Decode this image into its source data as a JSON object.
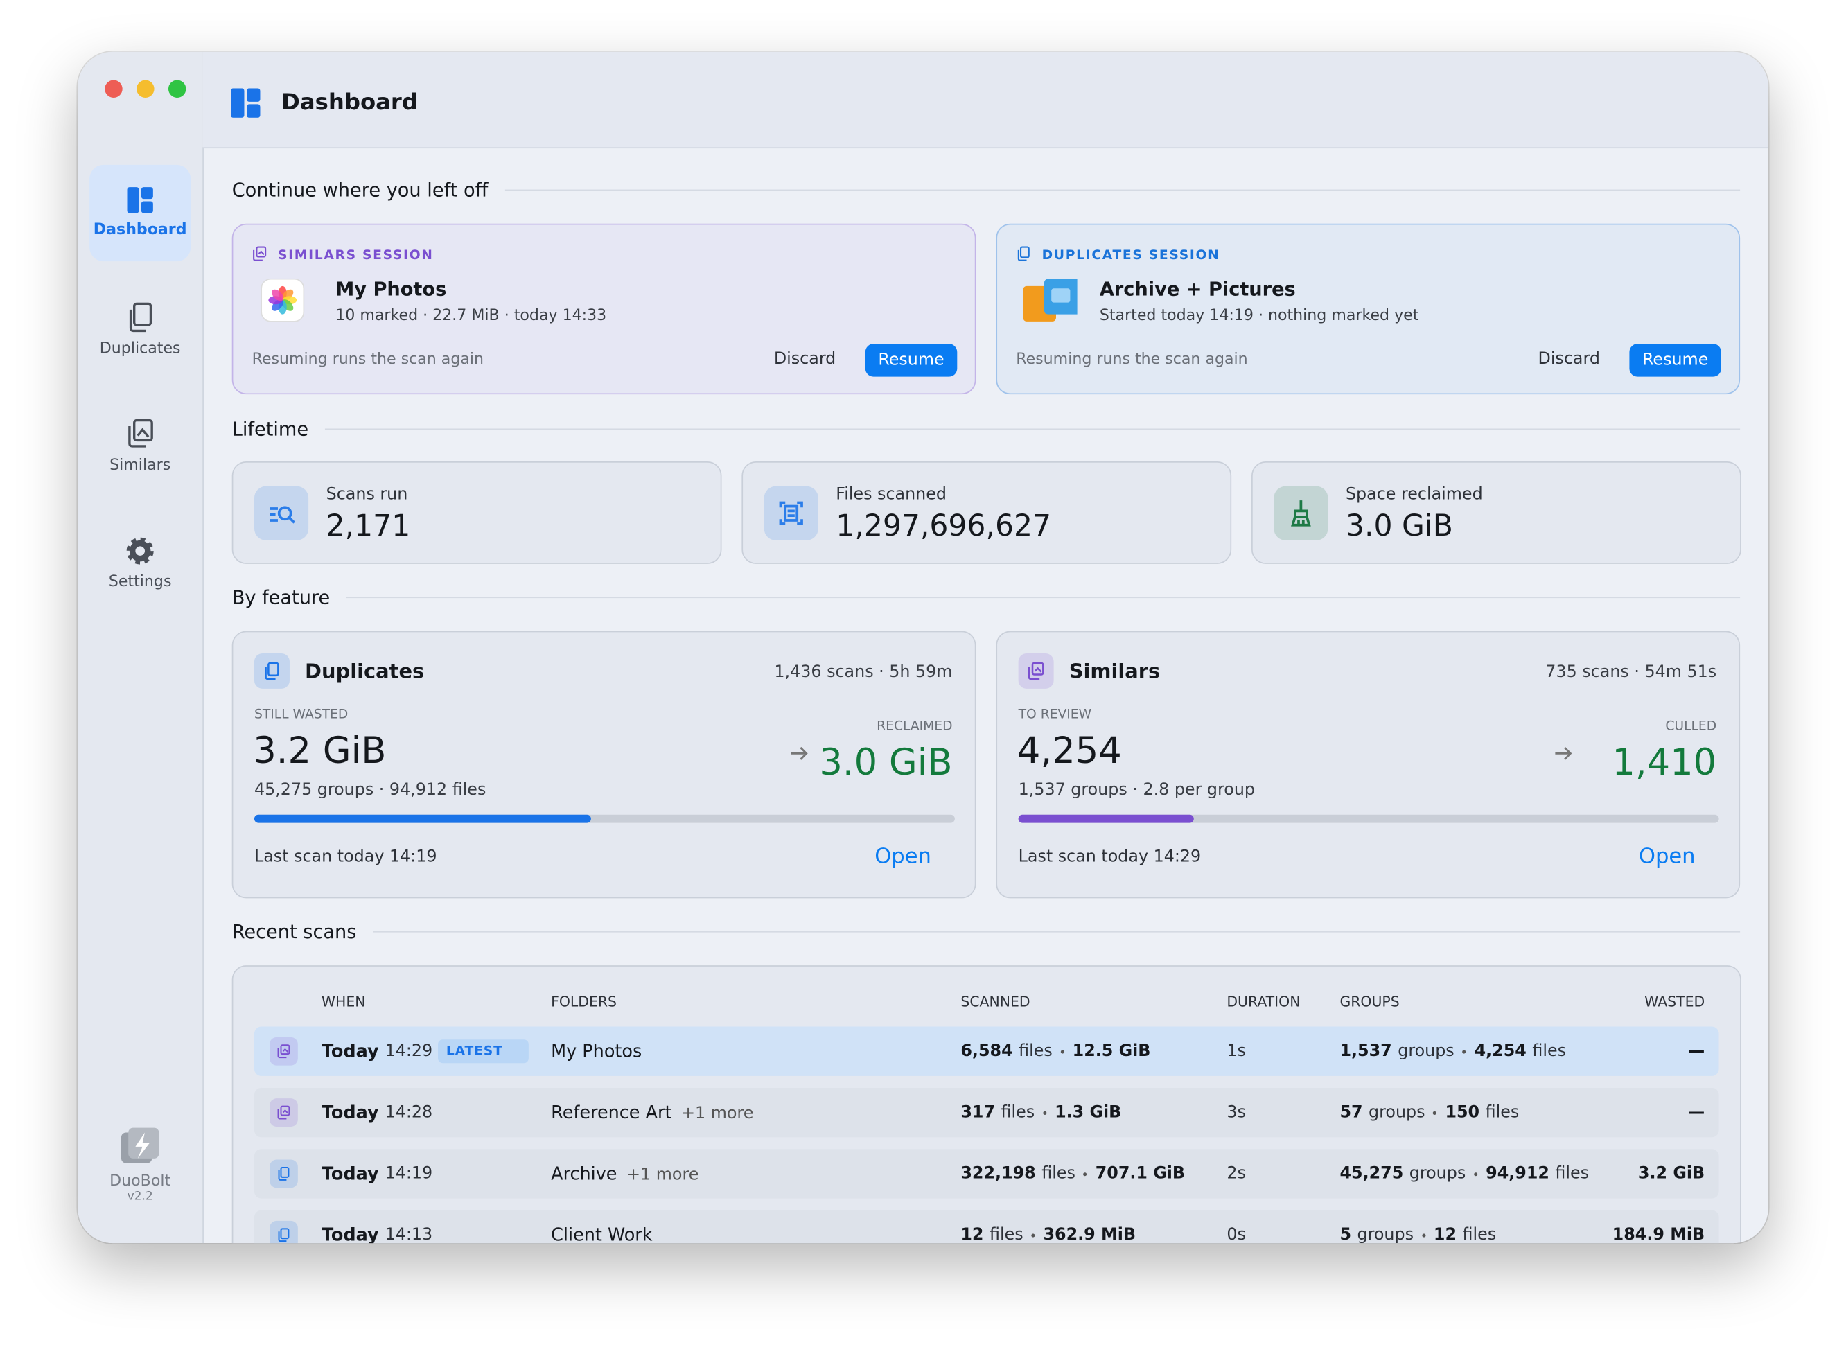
{
  "app": {
    "name": "DuoBolt",
    "version": "v2.2"
  },
  "header": {
    "title": "Dashboard"
  },
  "sidebar": {
    "items": [
      "Dashboard",
      "Duplicates",
      "Similars",
      "Settings"
    ]
  },
  "continue": {
    "heading": "Continue where you left off",
    "sessions": [
      {
        "kind": "SIMILARS SESSION",
        "color": "#7a4fd0",
        "title": "My Photos",
        "detail": "10 marked · 22.7 MiB · today 14:33",
        "note": "Resuming runs the scan again",
        "discard": "Discard",
        "resume": "Resume"
      },
      {
        "kind": "DUPLICATES SESSION",
        "color": "#1a73d9",
        "title": "Archive + Pictures",
        "detail": "Started today 14:19 · nothing marked yet",
        "note": "Resuming runs the scan again",
        "discard": "Discard",
        "resume": "Resume"
      }
    ]
  },
  "lifetime": {
    "heading": "Lifetime",
    "stats": [
      {
        "label": "Scans run",
        "value": "2,171",
        "color": "#2b7de9"
      },
      {
        "label": "Files scanned",
        "value": "1,297,696,627",
        "color": "#2b7de9"
      },
      {
        "label": "Space reclaimed",
        "value": "3.0 GiB",
        "color": "#1e7a46"
      }
    ]
  },
  "features": {
    "heading": "By feature",
    "cards": [
      {
        "name": "Duplicates",
        "color": "#1a73e8",
        "meta": "1,436 scans · 5h 59m",
        "primary_label": "STILL WASTED",
        "primary": "3.2 GiB",
        "detail": "45,275 groups · 94,912 files",
        "secondary_label": "RECLAIMED",
        "secondary": "3.0 GiB",
        "progress": 48,
        "last": "Last scan today 14:19",
        "open": "Open"
      },
      {
        "name": "Similars",
        "color": "#7a4fd0",
        "meta": "735 scans · 54m 51s",
        "primary_label": "TO REVIEW",
        "primary": "4,254",
        "detail": "1,537 groups · 2.8 per group",
        "secondary_label": "CULLED",
        "secondary": "1,410",
        "progress": 25,
        "last": "Last scan today 14:29",
        "open": "Open"
      }
    ]
  },
  "recent": {
    "heading": "Recent scans",
    "columns": [
      "WHEN",
      "FOLDERS",
      "SCANNED",
      "DURATION",
      "GROUPS",
      "WASTED"
    ],
    "rows": [
      {
        "color": "#7a4fd0",
        "highlight": true,
        "day": "Today",
        "time": "14:29",
        "badge": "LATEST",
        "folder": "My Photos",
        "scanned": {
          "count": "6,584",
          "unit": "files",
          "size": "12.5 GiB"
        },
        "duration": "1s",
        "groups": {
          "count": "1,537",
          "unit": "groups",
          "files": "4,254",
          "files_unit": "files"
        },
        "wasted": "—"
      },
      {
        "color": "#7a4fd0",
        "day": "Today",
        "time": "14:28",
        "folder": "Reference Art",
        "more": "+1 more",
        "scanned": {
          "count": "317",
          "unit": "files",
          "size": "1.3 GiB"
        },
        "duration": "3s",
        "groups": {
          "count": "57",
          "unit": "groups",
          "files": "150",
          "files_unit": "files"
        },
        "wasted": "—"
      },
      {
        "color": "#1a73e8",
        "day": "Today",
        "time": "14:19",
        "folder": "Archive",
        "more": "+1 more",
        "scanned": {
          "count": "322,198",
          "unit": "files",
          "size": "707.1 GiB"
        },
        "duration": "2s",
        "groups": {
          "count": "45,275",
          "unit": "groups",
          "files": "94,912",
          "files_unit": "files"
        },
        "wasted": "3.2 GiB"
      },
      {
        "color": "#1a73e8",
        "day": "Today",
        "time": "14:13",
        "folder": "Client Work",
        "scanned": {
          "count": "12",
          "unit": "files",
          "size": "362.9 MiB"
        },
        "duration": "0s",
        "groups": {
          "count": "5",
          "unit": "groups",
          "files": "12",
          "files_unit": "files"
        },
        "wasted": "184.9 MiB"
      }
    ]
  }
}
